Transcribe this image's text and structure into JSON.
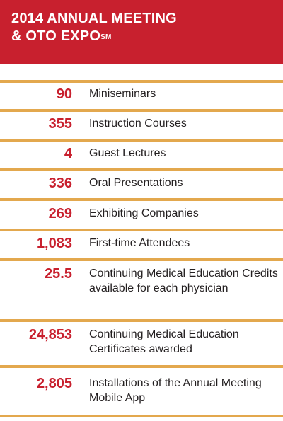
{
  "header": {
    "title_line1": "2014 ANNUAL MEETING",
    "title_line2": "& OTO EXPO",
    "title_superscript": "SM"
  },
  "stats": [
    {
      "value": "90",
      "label": "Miniseminars"
    },
    {
      "value": "355",
      "label": "Instruction Courses"
    },
    {
      "value": "4",
      "label": "Guest Lectures"
    },
    {
      "value": "336",
      "label": "Oral Presentations"
    },
    {
      "value": "269",
      "label": "Exhibiting Companies"
    },
    {
      "value": "1,083",
      "label": "First-time Attendees"
    },
    {
      "value": "25.5",
      "label": "Continuing Medical Education Credits available for each physician"
    },
    {
      "value": "24,853",
      "label": "Continuing Medical Education Certificates awarded"
    },
    {
      "value": "2,805",
      "label": "Installations of the Annual Meeting Mobile App"
    }
  ],
  "colors": {
    "header_background": "#c8202e",
    "number_color": "#c8202e",
    "divider_color": "#e3a84e",
    "label_color": "#231f20"
  }
}
